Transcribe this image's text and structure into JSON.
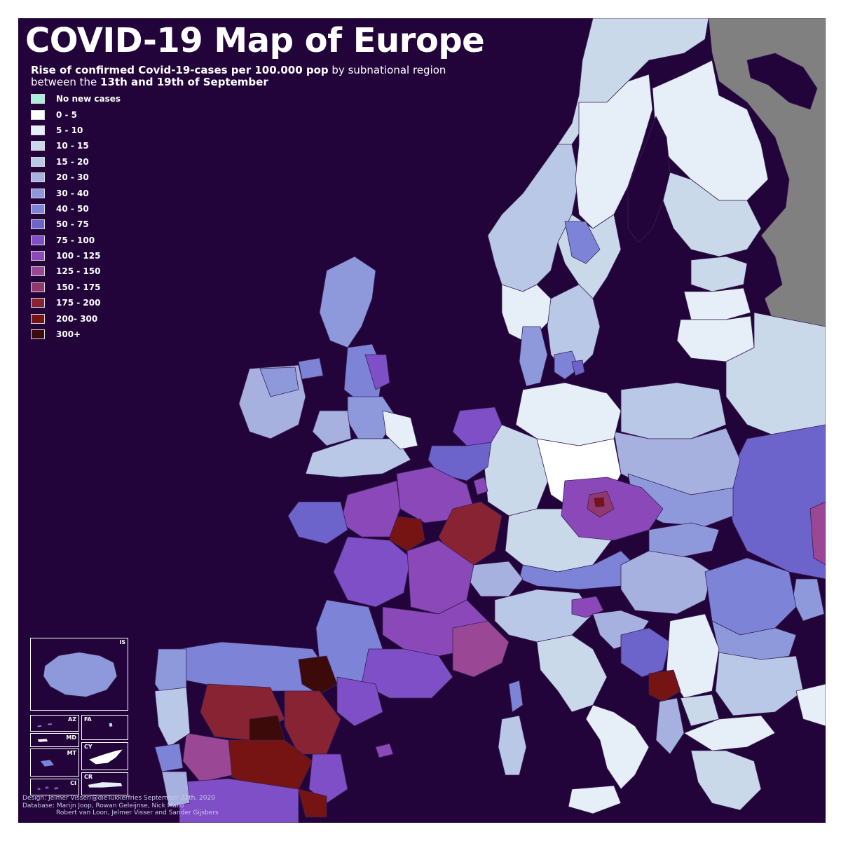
{
  "title": "COVID-19 Map of Europe",
  "subtitle": {
    "line1_bold": "Rise of confirmed Covid-19-cases per 100.000 pop",
    "line1_rest": " by subnational region",
    "line2_prefix": "between the ",
    "line2_bold": "13th and 19th of September"
  },
  "legend": [
    {
      "label": "No new cases",
      "color": "#a6f0dc"
    },
    {
      "label": "0 - 5",
      "color": "#ffffff"
    },
    {
      "label": "5 - 10",
      "color": "#e6eef7"
    },
    {
      "label": "10 - 15",
      "color": "#c9d9ea"
    },
    {
      "label": "15 - 20",
      "color": "#b9c8e6"
    },
    {
      "label": "20 - 30",
      "color": "#a6b1e0"
    },
    {
      "label": "30 - 40",
      "color": "#8e99dc"
    },
    {
      "label": "40 - 50",
      "color": "#7d84d8"
    },
    {
      "label": "50 - 75",
      "color": "#6c63cb"
    },
    {
      "label": "75 - 100",
      "color": "#7f4fc8"
    },
    {
      "label": "100 - 125",
      "color": "#8a48b8"
    },
    {
      "label": "125 - 150",
      "color": "#9a4895"
    },
    {
      "label": "150 - 175",
      "color": "#93386e"
    },
    {
      "label": "175 - 200",
      "color": "#882333"
    },
    {
      "label": "200- 300",
      "color": "#761414"
    },
    {
      "label": "300+",
      "color": "#3d0a0a"
    }
  ],
  "insets": [
    {
      "code": "IS"
    },
    {
      "code": "AZ"
    },
    {
      "code": "FA"
    },
    {
      "code": "MD"
    },
    {
      "code": "CY"
    },
    {
      "code": "MT"
    },
    {
      "code": "CI"
    },
    {
      "code": "CR"
    }
  ],
  "credits": {
    "line1": "Design: Jelmer Visser/@dieTukkerfries September 22th, 2020",
    "line2": "Database: Marijn Joop, Rowan Geleijnse, Nick Mallo",
    "line3": "Robert van Loon, Jelmer Visser and Sander Gijsbers"
  },
  "colors": {
    "sea": "#22043a",
    "non_eu": "#808080",
    "border": "#22043a"
  }
}
